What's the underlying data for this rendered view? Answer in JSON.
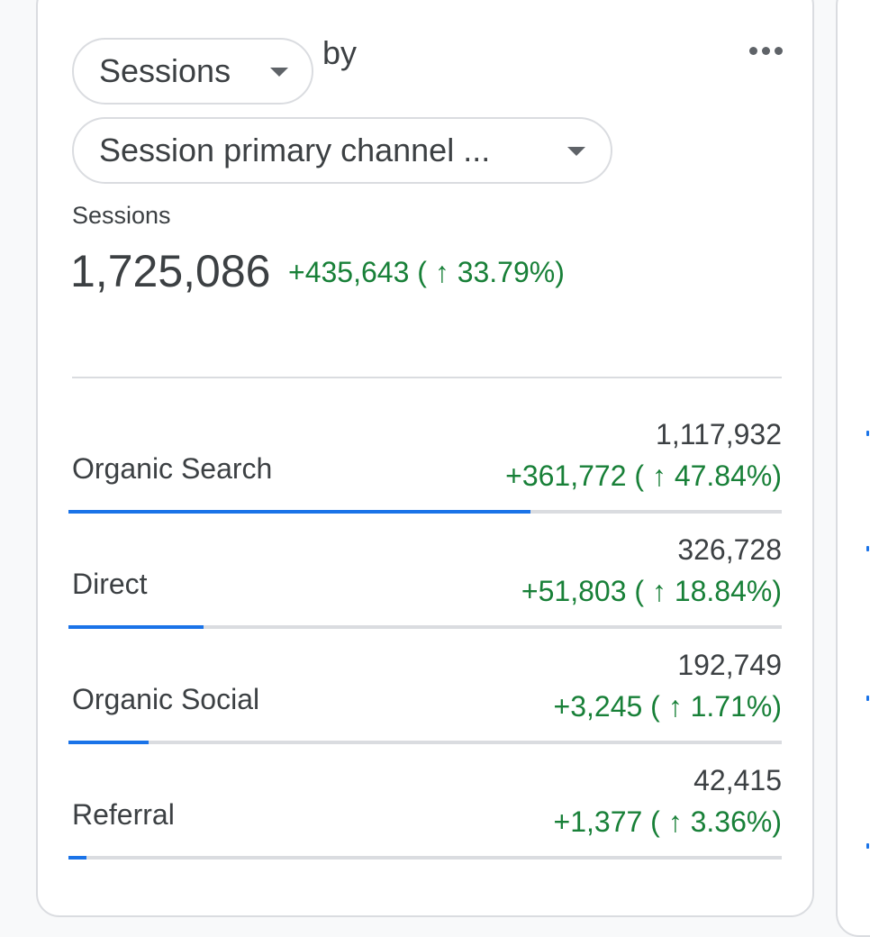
{
  "card": {
    "metric_chip": {
      "label": "Sessions"
    },
    "by_text": "by",
    "dimension_chip": {
      "label": "Session primary channel ..."
    },
    "metric_label": "Sessions",
    "total": "1,725,086",
    "total_delta": "+435,643 ( ↑ 33.79%)",
    "rows": [
      {
        "name": "Organic Search",
        "value": "1,117,932",
        "delta": "+361,772 ( ↑ 47.84%)",
        "fraction": 0.648
      },
      {
        "name": "Direct",
        "value": "326,728",
        "delta": "+51,803 ( ↑ 18.84%)",
        "fraction": 0.189
      },
      {
        "name": "Organic Social",
        "value": "192,749",
        "delta": "+3,245 ( ↑ 1.71%)",
        "fraction": 0.112
      },
      {
        "name": "Referral",
        "value": "42,415",
        "delta": "+1,377 ( ↑ 3.36%)",
        "fraction": 0.025
      }
    ]
  },
  "colors": {
    "accent": "#1a73e8",
    "positive": "#188038",
    "border": "#dadce0"
  },
  "icons": {
    "menu": "more-horizontal-icon",
    "dropdown": "caret-down-icon"
  }
}
